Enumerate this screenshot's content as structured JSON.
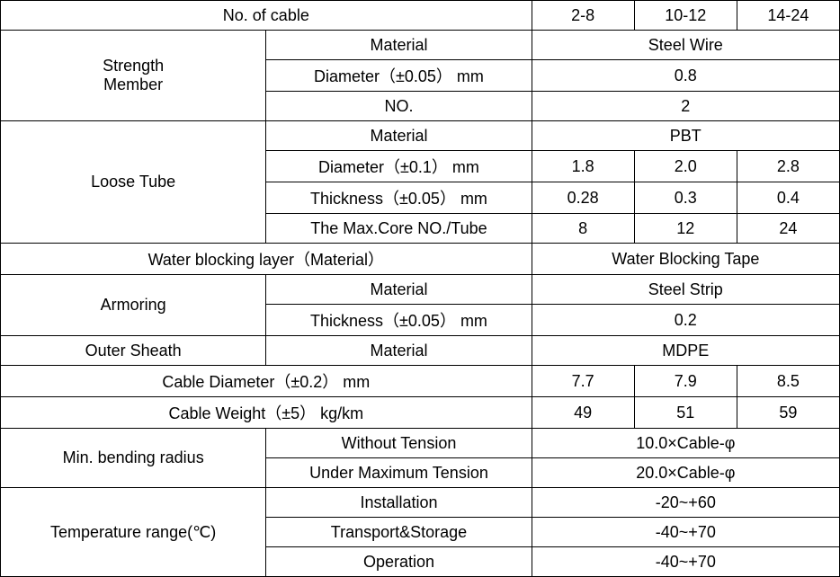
{
  "header": {
    "title": "No. of cable",
    "col1": "2-8",
    "col2": "10-12",
    "col3": "14-24"
  },
  "strength_member": {
    "label": "Strength\nMember",
    "material_label": "Material",
    "material_value": "Steel Wire",
    "diameter_label": "Diameter（±0.05） mm",
    "diameter_value": "0.8",
    "no_label": "NO.",
    "no_value": "2"
  },
  "loose_tube": {
    "label": "Loose Tube",
    "material_label": "Material",
    "material_value": "PBT",
    "diameter_label": "Diameter（±0.1） mm",
    "diameter_v1": "1.8",
    "diameter_v2": "2.0",
    "diameter_v3": "2.8",
    "thickness_label": "Thickness（±0.05） mm",
    "thickness_v1": "0.28",
    "thickness_v2": "0.3",
    "thickness_v3": "0.4",
    "maxcore_label": "The Max.Core NO./Tube",
    "maxcore_v1": "8",
    "maxcore_v2": "12",
    "maxcore_v3": "24"
  },
  "water_blocking": {
    "label": "Water blocking layer（Material）",
    "value": "Water Blocking Tape"
  },
  "armoring": {
    "label": "Armoring",
    "material_label": "Material",
    "material_value": "Steel Strip",
    "thickness_label": "Thickness（±0.05） mm",
    "thickness_value": "0.2"
  },
  "outer_sheath": {
    "label": "Outer Sheath",
    "material_label": "Material",
    "material_value": "MDPE"
  },
  "cable_diameter": {
    "label": "Cable Diameter（±0.2） mm",
    "v1": "7.7",
    "v2": "7.9",
    "v3": "8.5"
  },
  "cable_weight": {
    "label": "Cable Weight（±5） kg/km",
    "v1": "49",
    "v2": "51",
    "v3": "59"
  },
  "bending_radius": {
    "label": "Min. bending radius",
    "without_label": "Without Tension",
    "without_value": "10.0×Cable-φ",
    "under_label": "Under Maximum Tension",
    "under_value": "20.0×Cable-φ"
  },
  "temperature": {
    "label": "Temperature range(℃)",
    "install_label": "Installation",
    "install_value": "-20~+60",
    "transport_label": "Transport&Storage",
    "transport_value": "-40~+70",
    "operation_label": "Operation",
    "operation_value": "-40~+70"
  },
  "style": {
    "font_size": 18,
    "border_color": "#000000",
    "background": "#ffffff",
    "text_color": "#000000"
  }
}
